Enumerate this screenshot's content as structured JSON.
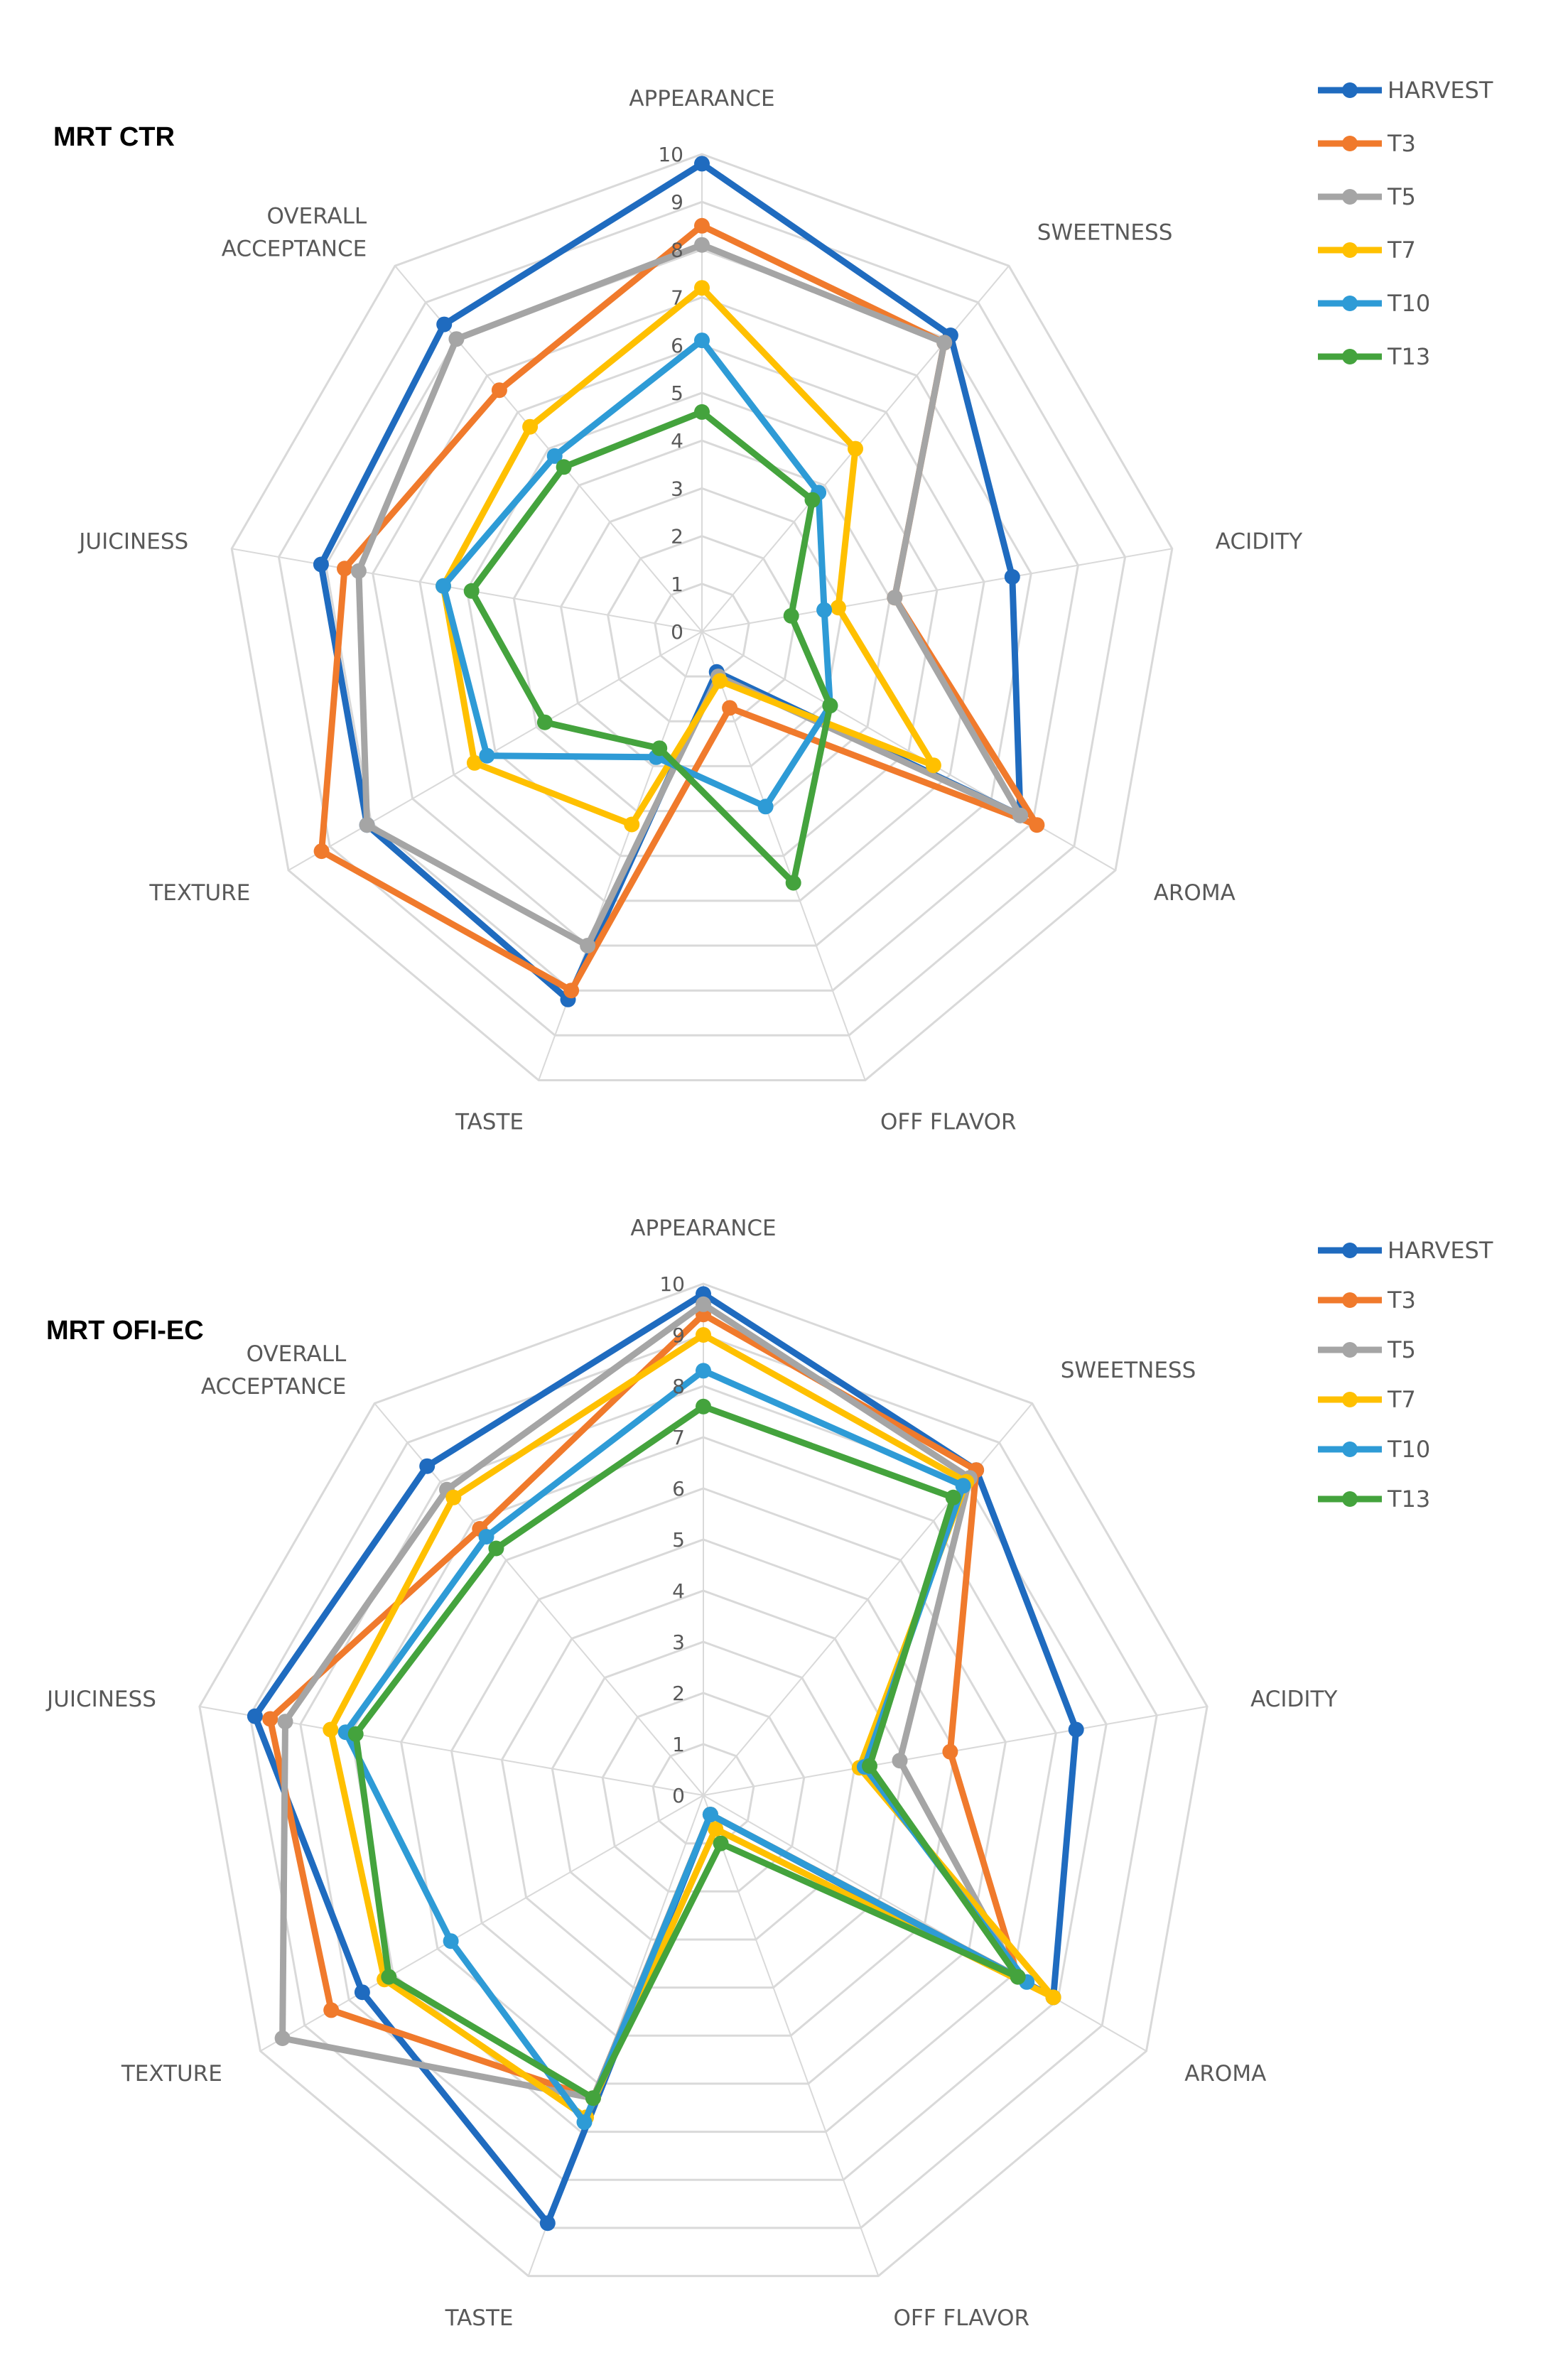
{
  "chart_data": [
    {
      "type": "radar",
      "title": "MRT CTR",
      "axes": [
        "APPEARANCE",
        "SWEETNESS",
        "ACIDITY",
        "AROMA",
        "OFF FLAVOR",
        "TASTE",
        "TEXTURE",
        "JUICINESS",
        "OVERALL ACCEPTANCE"
      ],
      "axis_label_lines": [
        [
          "APPEARANCE"
        ],
        [
          "SWEETNESS"
        ],
        [
          "ACIDITY"
        ],
        [
          "AROMA"
        ],
        [
          "OFF FLAVOR"
        ],
        [
          "TASTE"
        ],
        [
          "TEXTURE"
        ],
        [
          "JUICINESS"
        ],
        [
          "OVERALL",
          "ACCEPTANCE"
        ]
      ],
      "ticks": [
        "0",
        "1",
        "2",
        "3",
        "4",
        "5",
        "6",
        "7",
        "8",
        "9",
        "10"
      ],
      "rlim": [
        0,
        10
      ],
      "legend_position": "top-right",
      "series": [
        {
          "name": "HARVEST",
          "color": "#1f6bbf",
          "values": [
            9.8,
            8.1,
            6.6,
            7.7,
            0.9,
            8.2,
            8.1,
            8.1,
            8.4
          ]
        },
        {
          "name": "T3",
          "color": "#f07a2c",
          "values": [
            8.5,
            7.9,
            4.1,
            8.1,
            1.7,
            8.0,
            9.2,
            7.6,
            6.6
          ]
        },
        {
          "name": "T5",
          "color": "#a5a5a5",
          "values": [
            8.1,
            7.9,
            4.1,
            7.7,
            1.0,
            7.0,
            8.1,
            7.3,
            8.0
          ]
        },
        {
          "name": "T7",
          "color": "#ffc000",
          "values": [
            7.2,
            5.0,
            2.9,
            5.6,
            1.1,
            4.3,
            5.5,
            5.5,
            5.6
          ]
        },
        {
          "name": "T10",
          "color": "#2e9bd6",
          "values": [
            6.1,
            3.8,
            2.6,
            3.1,
            3.9,
            2.8,
            5.2,
            5.5,
            4.8
          ]
        },
        {
          "name": "T13",
          "color": "#44a33d",
          "values": [
            4.6,
            3.6,
            1.9,
            3.1,
            5.6,
            2.6,
            3.8,
            4.9,
            4.5
          ]
        }
      ]
    },
    {
      "type": "radar",
      "title": "MRT OFI-EC",
      "axes": [
        "APPEARANCE",
        "SWEETNESS",
        "ACIDITY",
        "AROMA",
        "OFF FLAVOR",
        "TASTE",
        "TEXTURE",
        "JUICINESS",
        "OVERALL ACCEPTANCE"
      ],
      "axis_label_lines": [
        [
          "APPEARANCE"
        ],
        [
          "SWEETNESS"
        ],
        [
          "ACIDITY"
        ],
        [
          "AROMA"
        ],
        [
          "OFF FLAVOR"
        ],
        [
          "TASTE"
        ],
        [
          "TEXTURE"
        ],
        [
          "JUICINESS"
        ],
        [
          "OVERALL",
          "ACCEPTANCE"
        ]
      ],
      "ticks": [
        "0",
        "1",
        "2",
        "3",
        "4",
        "5",
        "6",
        "7",
        "8",
        "9",
        "10"
      ],
      "rlim": [
        0,
        10
      ],
      "legend_position": "top-right",
      "series": [
        {
          "name": "HARVEST",
          "color": "#1f6bbf",
          "values": [
            9.8,
            8.3,
            7.4,
            7.9,
            0.4,
            8.9,
            7.7,
            8.9,
            8.4
          ]
        },
        {
          "name": "T3",
          "color": "#f07a2c",
          "values": [
            9.4,
            8.3,
            4.9,
            7.1,
            0.4,
            6.3,
            8.4,
            8.6,
            6.8
          ]
        },
        {
          "name": "T5",
          "color": "#a5a5a5",
          "values": [
            9.6,
            8.1,
            3.9,
            7.1,
            0.4,
            6.3,
            9.5,
            8.3,
            7.8
          ]
        },
        {
          "name": "T7",
          "color": "#ffc000",
          "values": [
            9.0,
            8.0,
            3.1,
            7.9,
            0.7,
            6.7,
            7.2,
            7.4,
            7.6
          ]
        },
        {
          "name": "T10",
          "color": "#2e9bd6",
          "values": [
            8.3,
            7.9,
            3.2,
            7.3,
            0.4,
            6.8,
            5.7,
            7.1,
            6.6
          ]
        },
        {
          "name": "T13",
          "color": "#44a33d",
          "values": [
            7.6,
            7.6,
            3.3,
            7.1,
            1.0,
            6.3,
            7.1,
            6.9,
            6.3
          ]
        }
      ]
    }
  ]
}
